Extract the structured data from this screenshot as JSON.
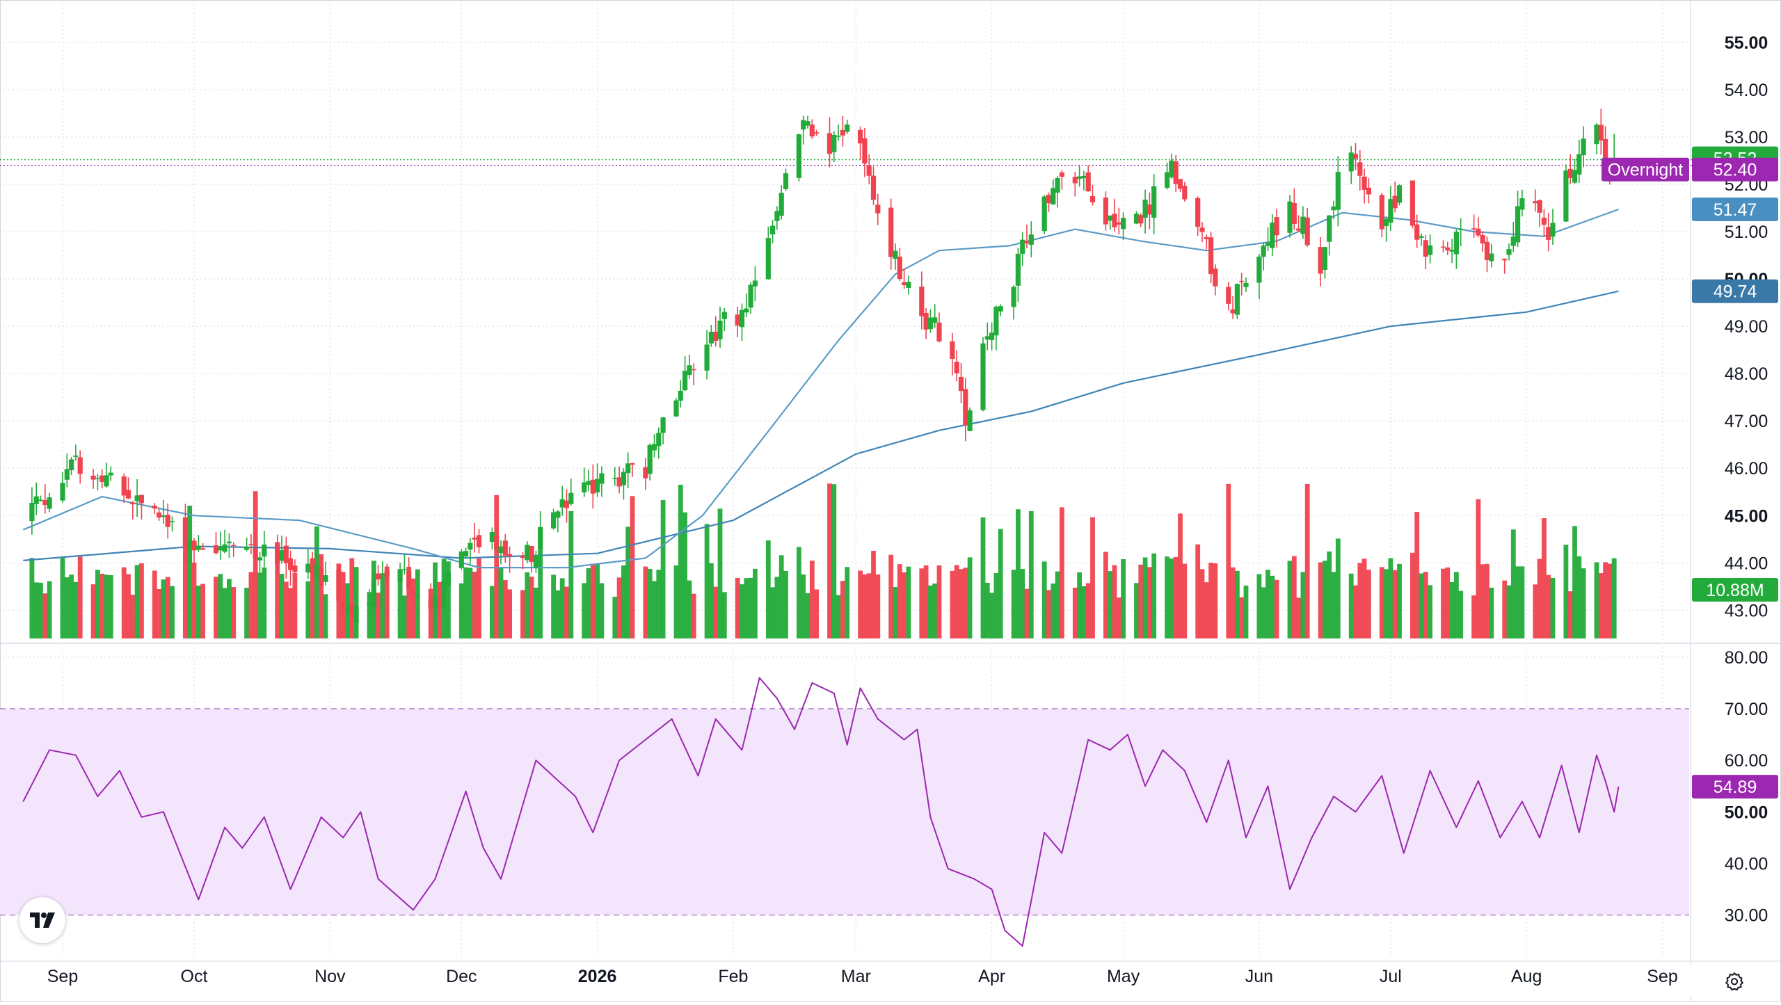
{
  "colors": {
    "up": "#22ab3a",
    "down": "#ef4350",
    "ma_fast": "#5b9bc7",
    "ma_slow": "#3f84b6",
    "rsi_line": "#9c27b0",
    "rsi_band": "#f3e5fc",
    "grid": "#dfe1e5",
    "text": "#131722",
    "last_price_tag": "#22ab3a",
    "overnight_tag": "#9c27b0",
    "ma_fast_tag": "#4a8fc2",
    "ma_slow_tag": "#3a78a8",
    "volume_tag": "#22ab3a",
    "rsi_tag": "#9c27b0"
  },
  "icons": {
    "logo": "tradingview-logo-icon",
    "settings": "gear-icon"
  },
  "chart_data": [
    {
      "type": "candlestick",
      "title": "",
      "y_ticks": [
        "43.00",
        "44.00",
        "45.00",
        "46.00",
        "47.00",
        "48.00",
        "49.00",
        "50.00",
        "51.00",
        "52.00",
        "53.00",
        "54.00",
        "55.00"
      ],
      "ylim": [
        42.3,
        55.6
      ],
      "grid": true,
      "x_labels": [
        "Sep",
        "Oct",
        "Nov",
        "Dec",
        "2026",
        "Feb",
        "Mar",
        "Apr",
        "May",
        "Jun",
        "Jul",
        "Aug",
        "Sep"
      ],
      "anchors": [
        {
          "date": "2025-08-23",
          "price": 45.0
        },
        {
          "date": "2025-09-05",
          "price": 46.1
        },
        {
          "date": "2025-09-18",
          "price": 45.3
        },
        {
          "date": "2025-10-01",
          "price": 44.4
        },
        {
          "date": "2025-10-15",
          "price": 44.3
        },
        {
          "date": "2025-10-29",
          "price": 43.7
        },
        {
          "date": "2025-11-06",
          "price": 42.9
        },
        {
          "date": "2025-11-15",
          "price": 43.9
        },
        {
          "date": "2025-11-25",
          "price": 43.1
        },
        {
          "date": "2025-12-04",
          "price": 44.6
        },
        {
          "date": "2025-12-15",
          "price": 44.0
        },
        {
          "date": "2025-12-25",
          "price": 45.3
        },
        {
          "date": "2026-01-07",
          "price": 45.9
        },
        {
          "date": "2026-01-12",
          "price": 46.0
        },
        {
          "date": "2026-01-20",
          "price": 47.8
        },
        {
          "date": "2026-01-27",
          "price": 48.9
        },
        {
          "date": "2026-02-04",
          "price": 49.3
        },
        {
          "date": "2026-02-11",
          "price": 51.5
        },
        {
          "date": "2026-02-17",
          "price": 53.4
        },
        {
          "date": "2026-02-23",
          "price": 52.8
        },
        {
          "date": "2026-02-28",
          "price": 53.3
        },
        {
          "date": "2026-03-04",
          "price": 52.1
        },
        {
          "date": "2026-03-09",
          "price": 50.6
        },
        {
          "date": "2026-03-16",
          "price": 49.3
        },
        {
          "date": "2026-03-22",
          "price": 48.6
        },
        {
          "date": "2026-03-26",
          "price": 47.1
        },
        {
          "date": "2026-03-31",
          "price": 48.9
        },
        {
          "date": "2026-04-05",
          "price": 49.8
        },
        {
          "date": "2026-04-12",
          "price": 51.6
        },
        {
          "date": "2026-04-20",
          "price": 52.2
        },
        {
          "date": "2026-04-28",
          "price": 51.3
        },
        {
          "date": "2026-05-06",
          "price": 51.4
        },
        {
          "date": "2026-05-12",
          "price": 52.4
        },
        {
          "date": "2026-05-20",
          "price": 50.6
        },
        {
          "date": "2026-05-25",
          "price": 49.3
        },
        {
          "date": "2026-06-01",
          "price": 50.6
        },
        {
          "date": "2026-06-08",
          "price": 51.6
        },
        {
          "date": "2026-06-15",
          "price": 50.3
        },
        {
          "date": "2026-06-21",
          "price": 52.9
        },
        {
          "date": "2026-06-28",
          "price": 51.1
        },
        {
          "date": "2026-07-03",
          "price": 51.9
        },
        {
          "date": "2026-07-11",
          "price": 50.3
        },
        {
          "date": "2026-07-19",
          "price": 51.0
        },
        {
          "date": "2026-07-26",
          "price": 50.2
        },
        {
          "date": "2026-08-01",
          "price": 52.1
        },
        {
          "date": "2026-08-06",
          "price": 50.8
        },
        {
          "date": "2026-08-11",
          "price": 52.4
        },
        {
          "date": "2026-08-16",
          "price": 53.2
        },
        {
          "date": "2026-08-20",
          "price": 52.4
        },
        {
          "date": "2026-08-22",
          "price": 52.52
        }
      ],
      "ma_fast": [
        {
          "date": "2025-08-23",
          "value": 44.7
        },
        {
          "date": "2025-09-10",
          "value": 45.4
        },
        {
          "date": "2025-10-01",
          "value": 45.0
        },
        {
          "date": "2025-10-25",
          "value": 44.9
        },
        {
          "date": "2025-11-20",
          "value": 44.3
        },
        {
          "date": "2025-12-05",
          "value": 43.9
        },
        {
          "date": "2025-12-25",
          "value": 43.9
        },
        {
          "date": "2026-01-12",
          "value": 44.1
        },
        {
          "date": "2026-01-25",
          "value": 45.0
        },
        {
          "date": "2026-02-10",
          "value": 46.9
        },
        {
          "date": "2026-02-25",
          "value": 48.7
        },
        {
          "date": "2026-03-10",
          "value": 50.1
        },
        {
          "date": "2026-03-20",
          "value": 50.6
        },
        {
          "date": "2026-04-05",
          "value": 50.7
        },
        {
          "date": "2026-04-20",
          "value": 51.05
        },
        {
          "date": "2026-05-05",
          "value": 50.8
        },
        {
          "date": "2026-05-20",
          "value": 50.6
        },
        {
          "date": "2026-06-05",
          "value": 50.8
        },
        {
          "date": "2026-06-20",
          "value": 51.4
        },
        {
          "date": "2026-07-05",
          "value": 51.25
        },
        {
          "date": "2026-07-20",
          "value": 51.0
        },
        {
          "date": "2026-08-05",
          "value": 50.9
        },
        {
          "date": "2026-08-22",
          "value": 51.47
        }
      ],
      "ma_slow": [
        {
          "date": "2025-08-23",
          "value": 44.05
        },
        {
          "date": "2025-10-01",
          "value": 44.35
        },
        {
          "date": "2025-11-01",
          "value": 44.3
        },
        {
          "date": "2025-12-01",
          "value": 44.1
        },
        {
          "date": "2026-01-01",
          "value": 44.2
        },
        {
          "date": "2026-02-01",
          "value": 44.9
        },
        {
          "date": "2026-03-01",
          "value": 46.3
        },
        {
          "date": "2026-03-20",
          "value": 46.8
        },
        {
          "date": "2026-04-10",
          "value": 47.2
        },
        {
          "date": "2026-05-01",
          "value": 47.8
        },
        {
          "date": "2026-06-01",
          "value": 48.4
        },
        {
          "date": "2026-07-01",
          "value": 49.0
        },
        {
          "date": "2026-08-01",
          "value": 49.3
        },
        {
          "date": "2026-08-22",
          "value": 49.74
        }
      ],
      "price_labels": {
        "last": "52.52",
        "overnight_label": "Overnight",
        "overnight": "52.40",
        "ma_fast": "51.47",
        "ma_slow": "49.74",
        "volume": "10.88M"
      }
    },
    {
      "type": "line",
      "title": "",
      "y_ticks": [
        "30.00",
        "40.00",
        "50.00",
        "60.00",
        "70.00",
        "80.00"
      ],
      "ylim": [
        22,
        82
      ],
      "band": [
        30,
        70
      ],
      "rsi": [
        {
          "date": "2025-08-23",
          "value": 52
        },
        {
          "date": "2025-08-29",
          "value": 62
        },
        {
          "date": "2025-09-04",
          "value": 61
        },
        {
          "date": "2025-09-09",
          "value": 53
        },
        {
          "date": "2025-09-14",
          "value": 58
        },
        {
          "date": "2025-09-19",
          "value": 49
        },
        {
          "date": "2025-09-24",
          "value": 50
        },
        {
          "date": "2025-10-02",
          "value": 33
        },
        {
          "date": "2025-10-08",
          "value": 47
        },
        {
          "date": "2025-10-12",
          "value": 43
        },
        {
          "date": "2025-10-17",
          "value": 49
        },
        {
          "date": "2025-10-23",
          "value": 35
        },
        {
          "date": "2025-10-30",
          "value": 49
        },
        {
          "date": "2025-11-04",
          "value": 45
        },
        {
          "date": "2025-11-08",
          "value": 50
        },
        {
          "date": "2025-11-12",
          "value": 37
        },
        {
          "date": "2025-11-20",
          "value": 31
        },
        {
          "date": "2025-11-25",
          "value": 37
        },
        {
          "date": "2025-12-02",
          "value": 54
        },
        {
          "date": "2025-12-06",
          "value": 43
        },
        {
          "date": "2025-12-10",
          "value": 37
        },
        {
          "date": "2025-12-18",
          "value": 60
        },
        {
          "date": "2025-12-27",
          "value": 53
        },
        {
          "date": "2025-12-31",
          "value": 46
        },
        {
          "date": "2026-01-06",
          "value": 60
        },
        {
          "date": "2026-01-12",
          "value": 64
        },
        {
          "date": "2026-01-18",
          "value": 68
        },
        {
          "date": "2026-01-24",
          "value": 57
        },
        {
          "date": "2026-01-28",
          "value": 68
        },
        {
          "date": "2026-02-03",
          "value": 62
        },
        {
          "date": "2026-02-07",
          "value": 76
        },
        {
          "date": "2026-02-11",
          "value": 72
        },
        {
          "date": "2026-02-15",
          "value": 66
        },
        {
          "date": "2026-02-19",
          "value": 75
        },
        {
          "date": "2026-02-24",
          "value": 73
        },
        {
          "date": "2026-02-27",
          "value": 63
        },
        {
          "date": "2026-03-02",
          "value": 74
        },
        {
          "date": "2026-03-06",
          "value": 68
        },
        {
          "date": "2026-03-12",
          "value": 64
        },
        {
          "date": "2026-03-15",
          "value": 66
        },
        {
          "date": "2026-03-18",
          "value": 49
        },
        {
          "date": "2026-03-22",
          "value": 39
        },
        {
          "date": "2026-03-28",
          "value": 37
        },
        {
          "date": "2026-04-01",
          "value": 35
        },
        {
          "date": "2026-04-04",
          "value": 27
        },
        {
          "date": "2026-04-08",
          "value": 24
        },
        {
          "date": "2026-04-13",
          "value": 46
        },
        {
          "date": "2026-04-17",
          "value": 42
        },
        {
          "date": "2026-04-23",
          "value": 64
        },
        {
          "date": "2026-04-28",
          "value": 62
        },
        {
          "date": "2026-05-02",
          "value": 65
        },
        {
          "date": "2026-05-06",
          "value": 55
        },
        {
          "date": "2026-05-10",
          "value": 62
        },
        {
          "date": "2026-05-15",
          "value": 58
        },
        {
          "date": "2026-05-20",
          "value": 48
        },
        {
          "date": "2026-05-25",
          "value": 60
        },
        {
          "date": "2026-05-29",
          "value": 45
        },
        {
          "date": "2026-06-03",
          "value": 55
        },
        {
          "date": "2026-06-08",
          "value": 35
        },
        {
          "date": "2026-06-13",
          "value": 45
        },
        {
          "date": "2026-06-18",
          "value": 53
        },
        {
          "date": "2026-06-23",
          "value": 50
        },
        {
          "date": "2026-06-29",
          "value": 57
        },
        {
          "date": "2026-07-04",
          "value": 42
        },
        {
          "date": "2026-07-10",
          "value": 58
        },
        {
          "date": "2026-07-16",
          "value": 47
        },
        {
          "date": "2026-07-21",
          "value": 56
        },
        {
          "date": "2026-07-26",
          "value": 45
        },
        {
          "date": "2026-07-31",
          "value": 52
        },
        {
          "date": "2026-08-04",
          "value": 45
        },
        {
          "date": "2026-08-09",
          "value": 59
        },
        {
          "date": "2026-08-13",
          "value": 46
        },
        {
          "date": "2026-08-17",
          "value": 61
        },
        {
          "date": "2026-08-19",
          "value": 56
        },
        {
          "date": "2026-08-21",
          "value": 50
        },
        {
          "date": "2026-08-22",
          "value": 54.89
        }
      ],
      "label": "54.89"
    }
  ]
}
